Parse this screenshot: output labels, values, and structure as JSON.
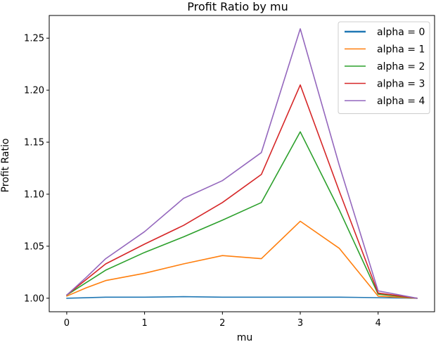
{
  "chart_data": {
    "type": "line",
    "title": "Profit Ratio by mu",
    "xlabel": "mu",
    "ylabel": "Profit Ratio",
    "xlim": [
      -0.225,
      4.725
    ],
    "ylim": [
      0.987,
      1.2718
    ],
    "xticks": [
      0,
      1,
      2,
      3,
      4
    ],
    "yticks": [
      1.0,
      1.05,
      1.1,
      1.15,
      1.2,
      1.25
    ],
    "ytick_labels": [
      "1.00",
      "1.05",
      "1.10",
      "1.15",
      "1.20",
      "1.25"
    ],
    "grid": false,
    "legend_position": "top-right",
    "series": [
      {
        "name": "alpha = 0",
        "color": "#1f77b4",
        "x": [
          0,
          0.5,
          1,
          1.5,
          2,
          2.5,
          3,
          3.5,
          4,
          4.5
        ],
        "values": [
          1.0,
          1.001,
          1.001,
          1.0015,
          1.001,
          1.001,
          1.001,
          1.001,
          1.0005,
          1.0
        ]
      },
      {
        "name": "alpha = 1",
        "color": "#ff7f0e",
        "x": [
          0,
          0.25,
          0.5,
          1,
          1.5,
          2,
          2.5,
          3,
          3.5,
          4,
          4.5
        ],
        "values": [
          1.002,
          1.01,
          1.017,
          1.024,
          1.033,
          1.041,
          1.038,
          1.074,
          1.048,
          1.002,
          1.0
        ]
      },
      {
        "name": "alpha = 2",
        "color": "#2ca02c",
        "x": [
          0,
          0.25,
          0.5,
          1,
          1.5,
          2,
          2.5,
          3,
          3.5,
          4,
          4.5
        ],
        "values": [
          1.003,
          1.015,
          1.027,
          1.044,
          1.059,
          1.075,
          1.092,
          1.16,
          1.085,
          1.004,
          1.0
        ]
      },
      {
        "name": "alpha = 3",
        "color": "#d62728",
        "x": [
          0,
          0.25,
          0.5,
          1,
          1.5,
          2,
          2.5,
          3,
          3.5,
          4,
          4.5
        ],
        "values": [
          1.003,
          1.018,
          1.033,
          1.052,
          1.07,
          1.092,
          1.119,
          1.205,
          1.103,
          1.005,
          1.0
        ]
      },
      {
        "name": "alpha = 4",
        "color": "#9467bd",
        "x": [
          0,
          0.25,
          0.5,
          1,
          1.5,
          2,
          2.5,
          3,
          3.5,
          4,
          4.5
        ],
        "values": [
          1.003,
          1.02,
          1.038,
          1.064,
          1.096,
          1.113,
          1.14,
          1.259,
          1.128,
          1.007,
          1.0
        ]
      }
    ]
  }
}
